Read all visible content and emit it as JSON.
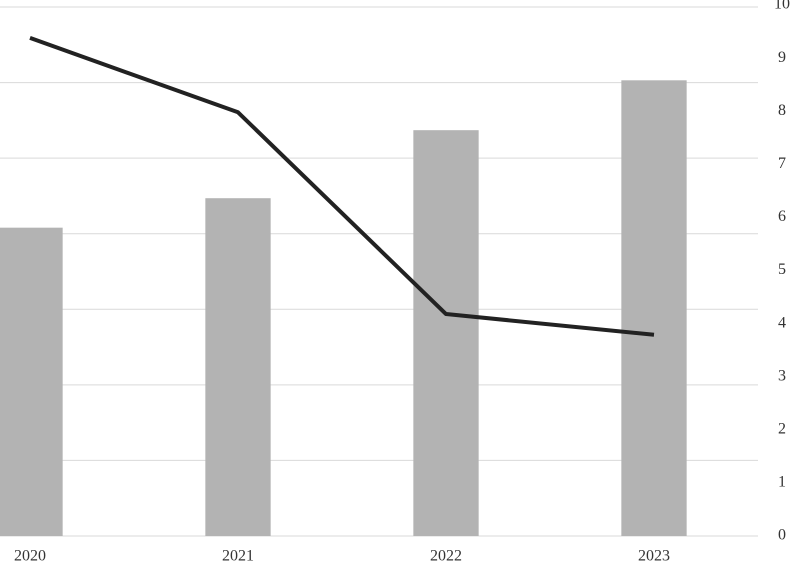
{
  "chart_data": {
    "type": "bar-line",
    "categories": [
      "2020",
      "2021",
      "2022",
      "2023"
    ],
    "series": [
      {
        "type": "bar",
        "color": "#b3b3b3",
        "values": [
          4.08,
          4.47,
          5.37,
          6.03
        ]
      },
      {
        "type": "line",
        "axis": "y2",
        "color": "#222222",
        "values": [
          9.38,
          7.98,
          4.18,
          3.79
        ]
      }
    ],
    "ylim": [
      0,
      7
    ],
    "yticks": [
      0,
      1,
      2,
      3,
      4,
      5,
      6,
      7
    ],
    "y2lim": [
      0,
      10
    ],
    "y2ticks": [
      0,
      1,
      2,
      3,
      4,
      5,
      6,
      7,
      8,
      9,
      10
    ],
    "grid": true
  }
}
